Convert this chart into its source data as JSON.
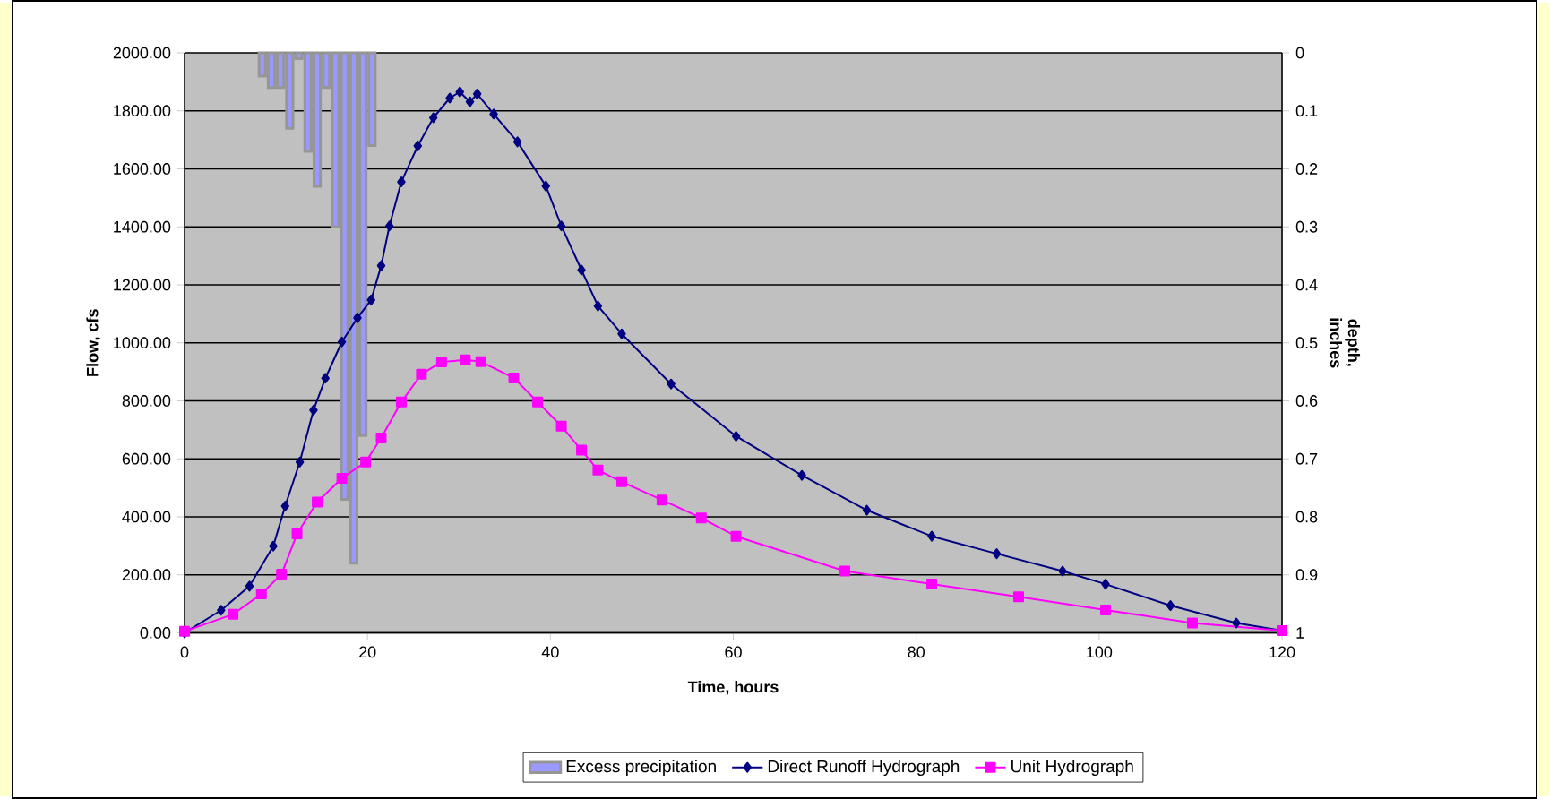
{
  "chart_data": {
    "type": "line",
    "xlabel": "Time, hours",
    "ylabel": "Flow, cfs",
    "y2label": "depth, inches",
    "xlim": [
      0,
      120
    ],
    "xticks": [
      0,
      20,
      40,
      60,
      80,
      100,
      120
    ],
    "ylim": [
      0,
      2000
    ],
    "yticks": [
      {
        "value": 0,
        "label": "0.00"
      },
      {
        "value": 200,
        "label": "200.00"
      },
      {
        "value": 400,
        "label": "400.00"
      },
      {
        "value": 600,
        "label": "600.00"
      },
      {
        "value": 800,
        "label": "800.00"
      },
      {
        "value": 1000,
        "label": "1000.00"
      },
      {
        "value": 1200,
        "label": "1200.00"
      },
      {
        "value": 1400,
        "label": "1400.00"
      },
      {
        "value": 1600,
        "label": "1600.00"
      },
      {
        "value": 1800,
        "label": "1800.00"
      },
      {
        "value": 2000,
        "label": "2000.00"
      }
    ],
    "y2lim": [
      1,
      0
    ],
    "y2ticks": [
      0,
      0.1,
      0.2,
      0.3,
      0.4,
      0.5,
      0.6,
      0.7,
      0.8,
      0.9,
      1
    ],
    "grid": "y",
    "legend": "bottom",
    "series": [
      {
        "name": "Excess precipitation",
        "type": "bar",
        "axis": "y2",
        "color": "#9999ff",
        "x": [
          8.5,
          9.5,
          10.5,
          11.5,
          12.5,
          13.5,
          14.5,
          15.5,
          16.5,
          17.5,
          18.5,
          19.5,
          20.5
        ],
        "values": [
          0.04,
          0.06,
          0.06,
          0.13,
          0.01,
          0.17,
          0.23,
          0.06,
          0.3,
          0.77,
          0.88,
          0.66,
          0.16
        ]
      },
      {
        "name": "Direct Runoff Hydrograph",
        "marker": "diamond",
        "color": "#000080",
        "x": [
          0,
          4.0,
          7.1,
          9.7,
          11.0,
          12.6,
          14.1,
          15.4,
          17.2,
          18.9,
          20.4,
          21.5,
          22.4,
          23.7,
          25.5,
          27.2,
          29.0,
          30.1,
          31.2,
          32.0,
          33.8,
          36.4,
          39.5,
          41.2,
          43.4,
          45.2,
          47.8,
          53.2,
          60.3,
          67.5,
          74.6,
          81.7,
          88.8,
          96.0,
          100.7,
          107.8,
          115.0,
          120
        ],
        "values": [
          0,
          78,
          161,
          299,
          437,
          589,
          768,
          878,
          1003,
          1086,
          1148,
          1266,
          1403,
          1555,
          1679,
          1776,
          1844,
          1865,
          1831,
          1858,
          1789,
          1693,
          1541,
          1403,
          1251,
          1127,
          1031,
          858,
          678,
          543,
          423,
          333,
          273,
          213,
          168,
          94,
          34,
          8
        ]
      },
      {
        "name": "Unit Hydrograph",
        "marker": "square",
        "color": "#ff00ff",
        "x": [
          0,
          5.3,
          8.4,
          10.6,
          12.3,
          14.5,
          17.2,
          19.8,
          21.5,
          23.7,
          25.9,
          28.1,
          30.7,
          32.4,
          36.0,
          38.6,
          41.2,
          43.4,
          45.2,
          47.8,
          52.2,
          56.5,
          60.3,
          72.2,
          81.7,
          91.2,
          100.7,
          110.2,
          120
        ],
        "values": [
          5,
          64,
          134,
          202,
          341,
          451,
          533,
          589,
          672,
          796,
          892,
          934,
          941,
          935,
          879,
          796,
          713,
          630,
          561,
          521,
          458,
          396,
          333,
          213,
          168,
          124,
          79,
          34,
          8
        ]
      }
    ]
  }
}
